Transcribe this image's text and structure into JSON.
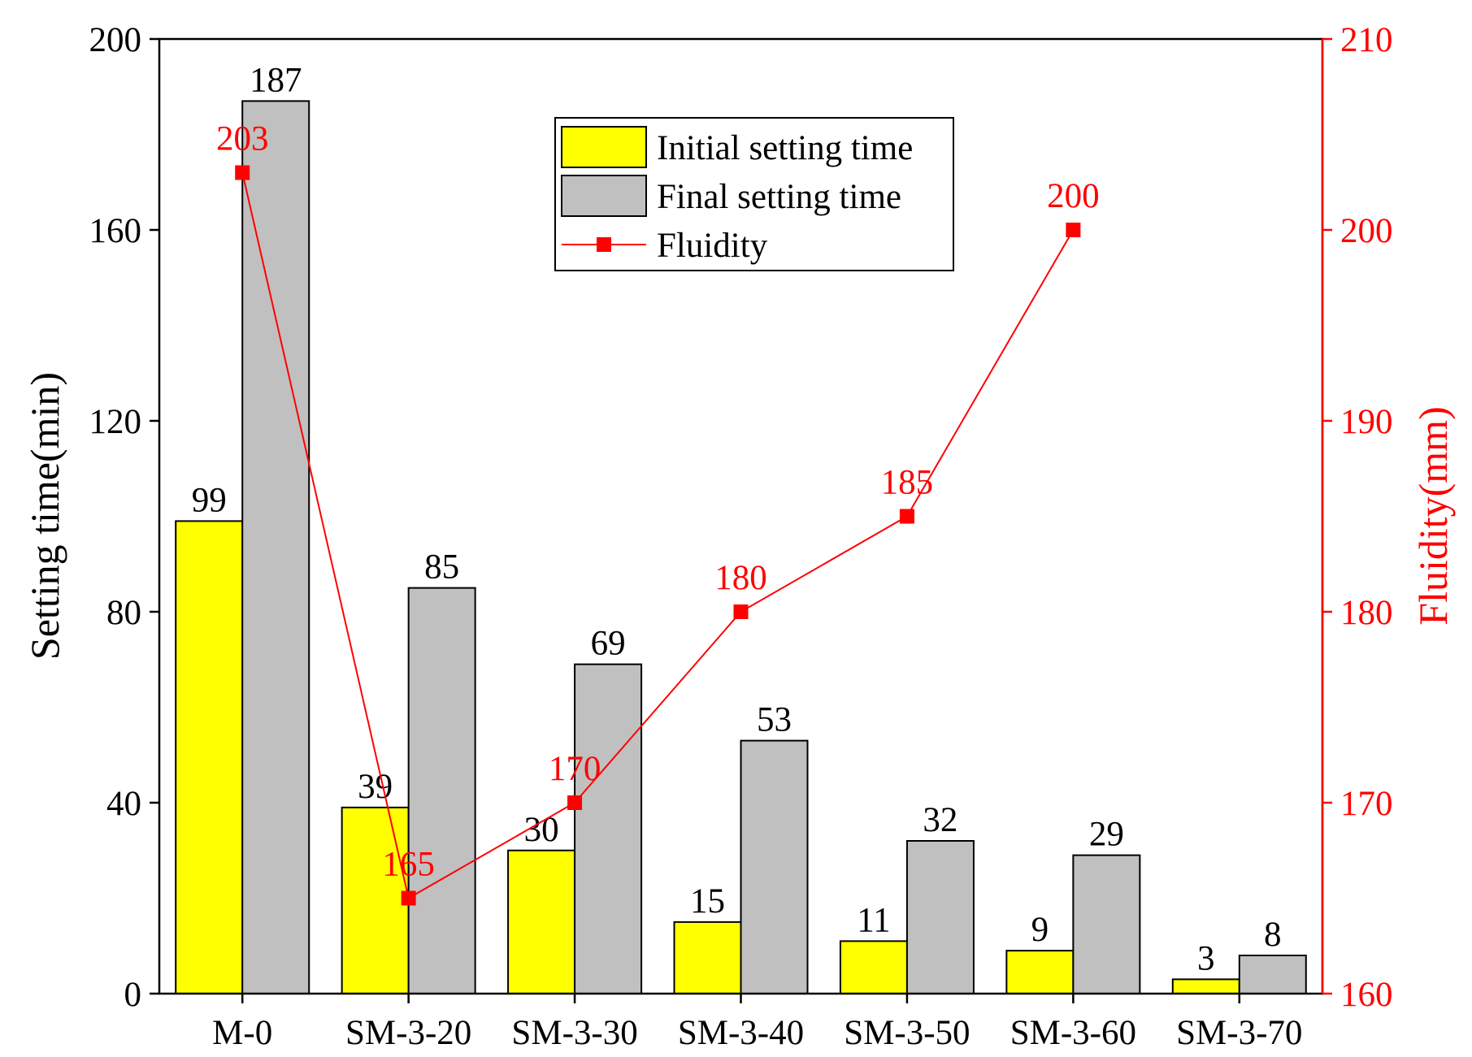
{
  "chart_data": {
    "type": "bar",
    "categories": [
      "M-0",
      "SM-3-20",
      "SM-3-30",
      "SM-3-40",
      "SM-3-50",
      "SM-3-60",
      "SM-3-70"
    ],
    "series": [
      {
        "name": "Initial setting time",
        "axis": "left",
        "color": "#ffff00",
        "values": [
          99,
          39,
          30,
          15,
          11,
          9,
          3
        ]
      },
      {
        "name": "Final setting time",
        "axis": "left",
        "color": "#c0c0c0",
        "values": [
          187,
          85,
          69,
          53,
          32,
          29,
          8
        ]
      },
      {
        "name": "Fluidity",
        "type": "line",
        "axis": "right",
        "color": "#ff0000",
        "marker": "square",
        "values": [
          203,
          165,
          170,
          180,
          185,
          200,
          null
        ]
      }
    ],
    "ylabel": "Setting time(min)",
    "ylim": [
      0,
      200
    ],
    "yticks": [
      0,
      40,
      80,
      120,
      160,
      200
    ],
    "y2label": "Fluidity(mm)",
    "y2lim": [
      160,
      210
    ],
    "y2ticks": [
      160,
      170,
      180,
      190,
      200,
      210
    ],
    "legend_position": "top-center",
    "grid": false
  }
}
